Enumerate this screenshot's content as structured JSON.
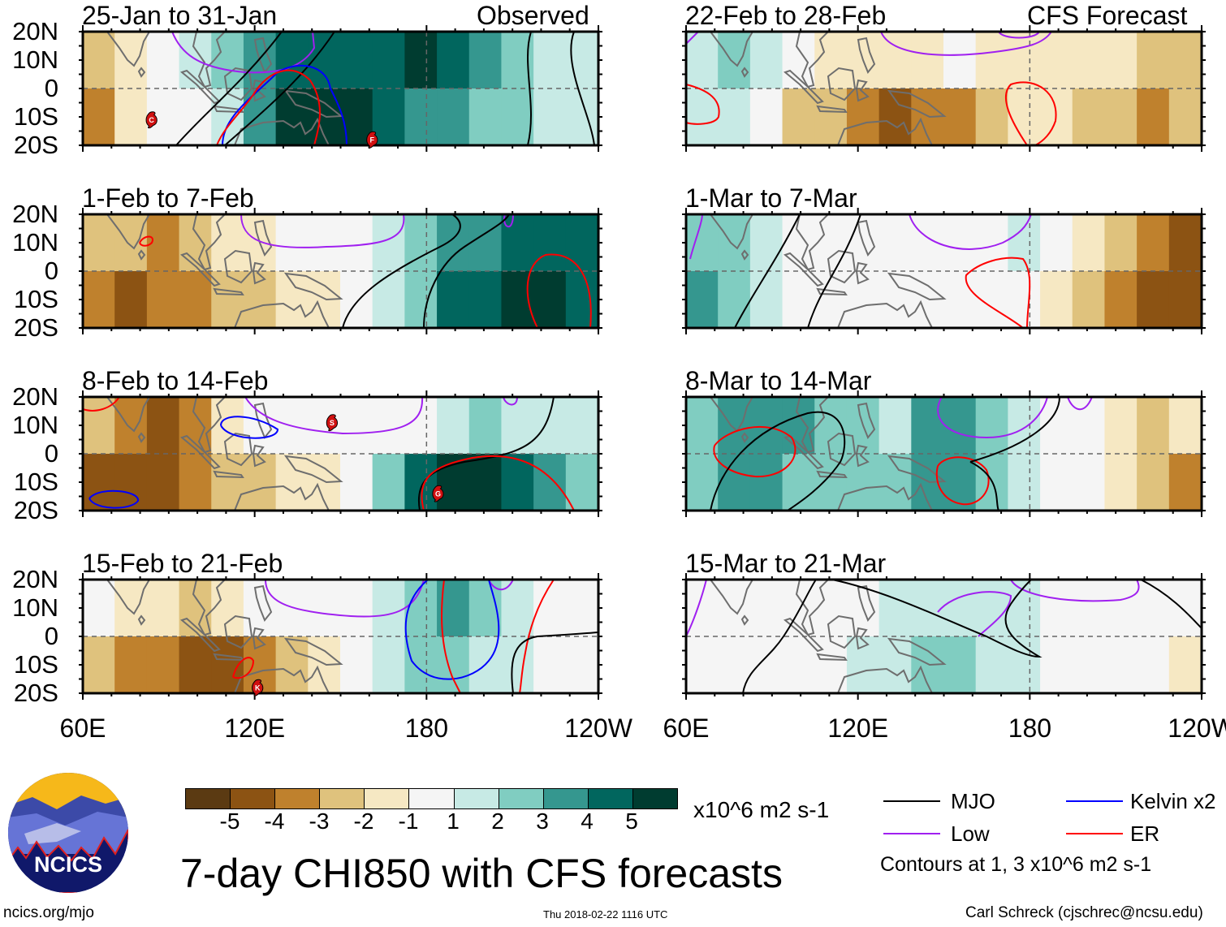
{
  "figure_title": "7-day CHI850 with CFS forecasts",
  "left_column_label": "Observed",
  "right_column_label": "CFS Forecast",
  "lat_labels": [
    "20N",
    "10N",
    "0",
    "10S",
    "20S"
  ],
  "lon_labels": [
    "60E",
    "120E",
    "180",
    "120W"
  ],
  "colors": {
    "levels": [
      "#5b3a12",
      "#8c5313",
      "#bf812d",
      "#dfc27d",
      "#f6e8c3",
      "#f5f5f5",
      "#c7eae5",
      "#80cdc1",
      "#35978f",
      "#01665e",
      "#003c30"
    ],
    "mjo": "#000000",
    "low": "#a020f0",
    "kelvin": "#0000ff",
    "er": "#ff0000",
    "coast": "#6e6e6e"
  },
  "colorbar": {
    "ticks": [
      "-5",
      "-4",
      "-3",
      "-2",
      "-1",
      "1",
      "2",
      "3",
      "4",
      "5"
    ],
    "units": "x10^6 m2 s-1"
  },
  "legend": {
    "mjo": "MJO",
    "kelvin": "Kelvin x2",
    "low": "Low",
    "er": "ER",
    "contours_note": "Contours at 1, 3 x10^6 m2 s-1"
  },
  "footer": {
    "url": "ncics.org/mjo",
    "timestamp": "Thu 2018-02-22 1116 UTC",
    "author": "Carl Schreck (cjschrec@ncsu.edu)",
    "logo_text": "NCICS"
  },
  "panels": [
    {
      "title": "25-Jan to 31-Jan",
      "field_north": [
        -2,
        -1,
        0,
        1,
        2,
        3,
        4,
        4,
        4,
        4,
        5,
        4,
        3,
        2,
        1,
        1
      ],
      "field_south": [
        -3,
        -1,
        0,
        0,
        1,
        3,
        5,
        5,
        5,
        4,
        3,
        3,
        2,
        2,
        1,
        1
      ],
      "storms": [
        {
          "id": "C",
          "lon": 84,
          "lat": -11
        },
        {
          "id": "F",
          "lon": 161,
          "lat": -18
        }
      ]
    },
    {
      "title": "1-Feb to 7-Feb",
      "field_north": [
        -2,
        -2,
        -3,
        -2,
        -1,
        -1,
        0,
        0,
        0,
        1,
        2,
        3,
        3,
        4,
        4,
        4
      ],
      "field_south": [
        -3,
        -4,
        -3,
        -3,
        -2,
        -2,
        -1,
        -1,
        0,
        1,
        2,
        4,
        4,
        5,
        5,
        4
      ],
      "storms": []
    },
    {
      "title": "8-Feb to 14-Feb",
      "field_north": [
        -2,
        -3,
        -4,
        -3,
        -1,
        0,
        0,
        0,
        0,
        0,
        0,
        1,
        2,
        1,
        1,
        1
      ],
      "field_south": [
        -4,
        -4,
        -4,
        -3,
        -2,
        -2,
        -1,
        -1,
        0,
        2,
        4,
        5,
        5,
        4,
        3,
        2
      ],
      "storms": [
        {
          "id": "S",
          "lon": 147,
          "lat": 11
        },
        {
          "id": "G",
          "lon": 184,
          "lat": -14
        }
      ]
    },
    {
      "title": "15-Feb to 21-Feb",
      "field_north": [
        0,
        -1,
        -1,
        -2,
        -1,
        0,
        0,
        0,
        0,
        1,
        2,
        3,
        2,
        1,
        0,
        0
      ],
      "field_south": [
        -2,
        -3,
        -3,
        -4,
        -4,
        -3,
        -2,
        -1,
        0,
        1,
        2,
        2,
        1,
        1,
        0,
        0
      ],
      "storms": [
        {
          "id": "K",
          "lon": 121,
          "lat": -18
        }
      ]
    },
    {
      "title": "22-Feb to 28-Feb",
      "field_north": [
        1,
        2,
        1,
        0,
        -1,
        -1,
        -1,
        -1,
        0,
        -1,
        -1,
        -1,
        -1,
        -1,
        -2,
        -2
      ],
      "field_south": [
        1,
        1,
        0,
        -2,
        -2,
        -3,
        -4,
        -3,
        -3,
        -2,
        -1,
        -1,
        -2,
        -2,
        -3,
        -2
      ],
      "storms": []
    },
    {
      "title": "1-Mar to 7-Mar",
      "field_north": [
        2,
        2,
        1,
        0,
        0,
        0,
        0,
        0,
        0,
        0,
        1,
        0,
        -1,
        -2,
        -3,
        -4
      ],
      "field_south": [
        3,
        2,
        1,
        0,
        0,
        0,
        0,
        0,
        0,
        0,
        0,
        -1,
        -2,
        -3,
        -4,
        -4
      ],
      "storms": []
    },
    {
      "title": "8-Mar to 14-Mar",
      "field_north": [
        2,
        3,
        3,
        3,
        2,
        2,
        1,
        3,
        3,
        2,
        1,
        0,
        0,
        -1,
        -2,
        -1
      ],
      "field_south": [
        2,
        3,
        3,
        2,
        2,
        2,
        2,
        3,
        3,
        2,
        1,
        0,
        0,
        -1,
        -2,
        -3
      ],
      "storms": []
    },
    {
      "title": "15-Mar to 21-Mar",
      "field_north": [
        0,
        0,
        0,
        0,
        0,
        0,
        1,
        1,
        1,
        1,
        1,
        0,
        0,
        0,
        0,
        0
      ],
      "field_south": [
        0,
        0,
        0,
        0,
        0,
        1,
        1,
        2,
        2,
        1,
        1,
        0,
        0,
        0,
        0,
        -1
      ],
      "storms": []
    }
  ]
}
